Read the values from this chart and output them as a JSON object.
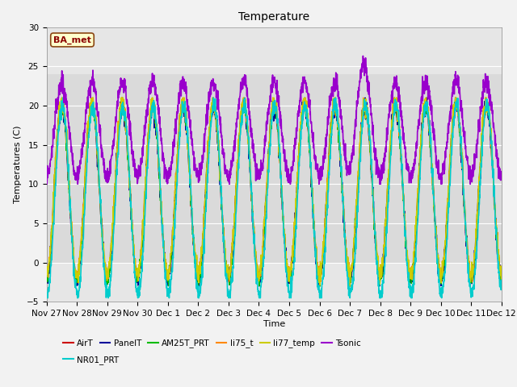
{
  "title": "Temperature",
  "ylabel": "Temperatures (C)",
  "xlabel": "Time",
  "ylim": [
    -5,
    30
  ],
  "annotation_text": "BA_met",
  "series": {
    "AirT": {
      "color": "#cc0000",
      "lw": 1.0
    },
    "PanelT": {
      "color": "#000099",
      "lw": 1.0
    },
    "AM25T_PRT": {
      "color": "#00bb00",
      "lw": 1.0
    },
    "li75_t": {
      "color": "#ff8800",
      "lw": 1.0
    },
    "li77_temp": {
      "color": "#cccc00",
      "lw": 1.0
    },
    "Tsonic": {
      "color": "#9900cc",
      "lw": 1.2
    },
    "NR01_PRT": {
      "color": "#00cccc",
      "lw": 1.2
    }
  },
  "xtick_labels": [
    "Nov 27",
    "Nov 28",
    "Nov 29",
    "Nov 30",
    "Dec 1",
    "Dec 2",
    "Dec 3",
    "Dec 4",
    "Dec 5",
    "Dec 6",
    "Dec 7",
    "Dec 8",
    "Dec 9",
    "Dec 10",
    "Dec 11",
    "Dec 12"
  ],
  "num_days": 15,
  "pts_per_day": 144
}
